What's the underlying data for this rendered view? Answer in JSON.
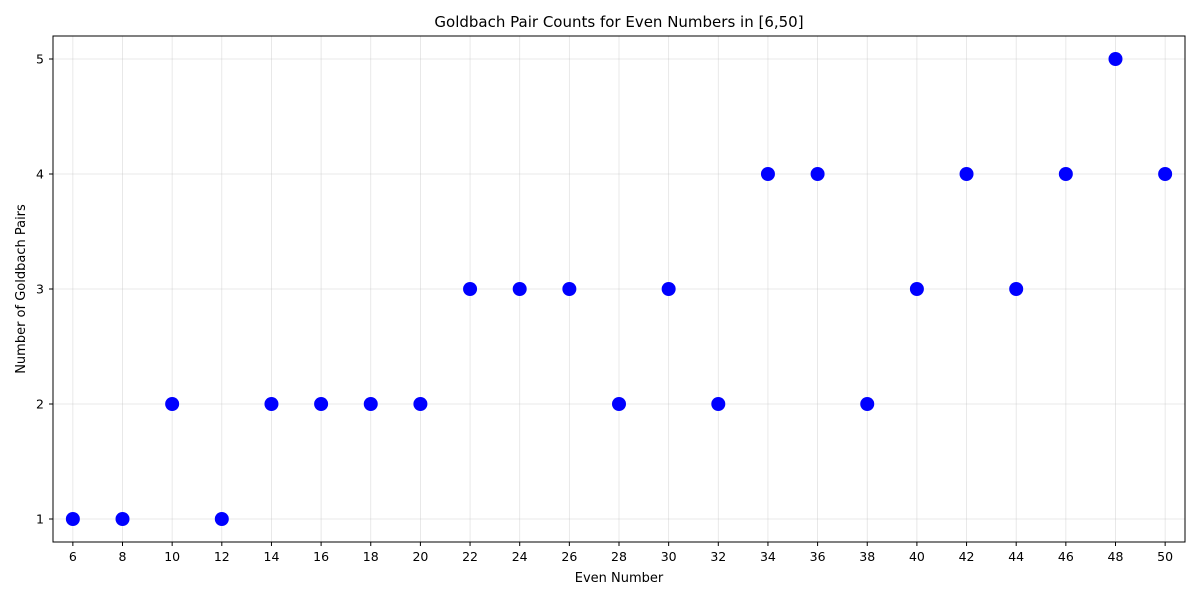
{
  "chart_data": {
    "type": "scatter",
    "title": "Goldbach Pair Counts for Even Numbers in [6,50]",
    "xlabel": "Even Number",
    "ylabel": "Number of Goldbach Pairs",
    "x": [
      6,
      8,
      10,
      12,
      14,
      16,
      18,
      20,
      22,
      24,
      26,
      28,
      30,
      32,
      34,
      36,
      38,
      40,
      42,
      44,
      46,
      48,
      50
    ],
    "y": [
      1,
      1,
      2,
      1,
      2,
      2,
      2,
      2,
      3,
      3,
      3,
      2,
      3,
      2,
      4,
      4,
      2,
      3,
      4,
      3,
      4,
      5,
      4
    ],
    "xticks": [
      6,
      8,
      10,
      12,
      14,
      16,
      18,
      20,
      22,
      24,
      26,
      28,
      30,
      32,
      34,
      36,
      38,
      40,
      42,
      44,
      46,
      48,
      50
    ],
    "yticks": [
      1,
      2,
      3,
      4,
      5
    ],
    "xlim": [
      5.2,
      50.8
    ],
    "ylim": [
      0.8,
      5.2
    ],
    "grid": true,
    "marker_color": "#0000ff",
    "legend": "none"
  }
}
